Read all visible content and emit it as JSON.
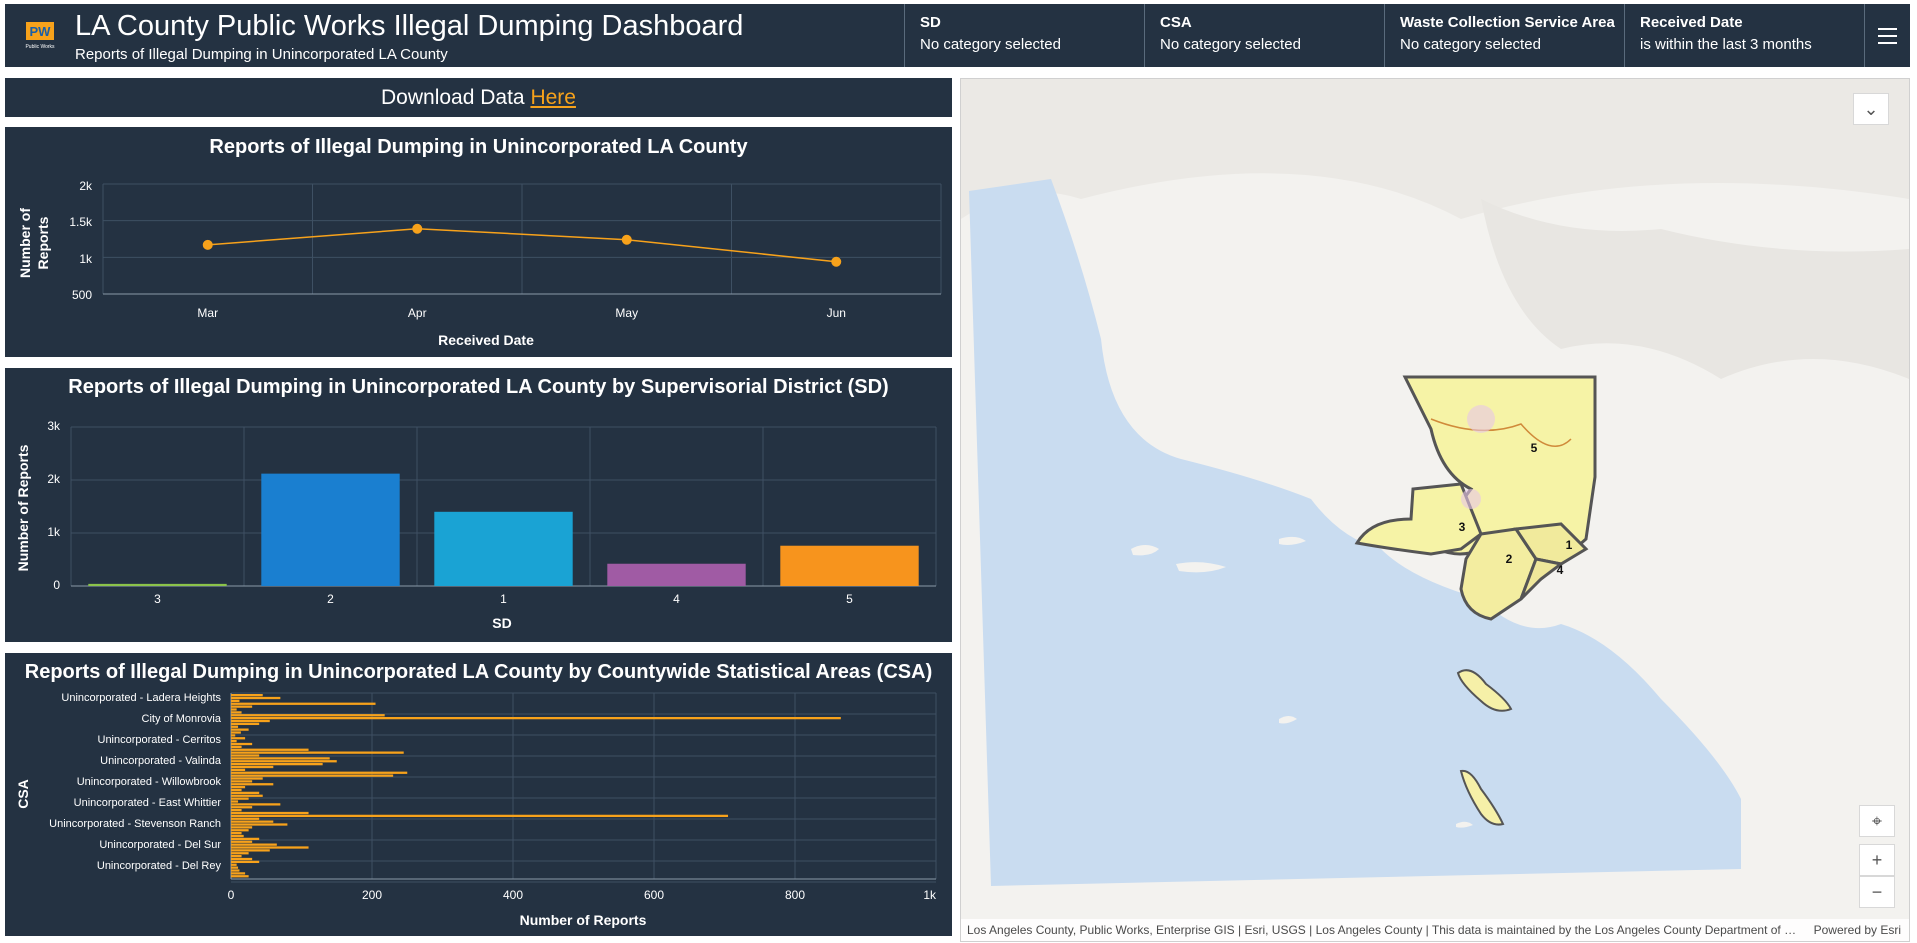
{
  "header": {
    "title": "LA County Public Works Illegal Dumping Dashboard",
    "subtitle": "Reports of Illegal Dumping in Unincorporated LA County",
    "logo_text": "PW",
    "logo_subtext": "Public Works"
  },
  "filters": [
    {
      "title": "SD",
      "value": "No category selected"
    },
    {
      "title": "CSA",
      "value": "No category selected"
    },
    {
      "title": "Waste Collection Service Area",
      "value": "No category selected"
    },
    {
      "title": "Received Date",
      "value": "is within the last 3 months"
    }
  ],
  "download": {
    "text": "Download Data ",
    "link": "Here"
  },
  "charts": {
    "line": {
      "title": "Reports of Illegal Dumping in Unincorporated LA County",
      "ylabel_1": "Number of",
      "ylabel_2": "Reports",
      "xlabel": "Received Date",
      "yticks": [
        "2k",
        "1.5k",
        "1k",
        "500"
      ]
    },
    "bar": {
      "title": "Reports of Illegal Dumping in Unincorporated LA County by Supervisorial District (SD)",
      "ylabel": "Number of Reports",
      "xlabel": "SD",
      "yticks": [
        "3k",
        "2k",
        "1k",
        "0"
      ]
    },
    "hbar": {
      "title": "Reports of Illegal Dumping in Unincorporated LA County by Countywide Statistical Areas (CSA)",
      "ylabel": "CSA",
      "xlabel": "Number of Reports",
      "xticks": [
        "0",
        "200",
        "400",
        "600",
        "800",
        "1k"
      ],
      "category_labels": [
        "Unincorporated - Ladera Heights",
        "City of Monrovia",
        "Unincorporated - Cerritos",
        "Unincorporated - Valinda",
        "Unincorporated - Willowbrook",
        "Unincorporated - East Whittier",
        "Unincorporated - Stevenson Ranch",
        "Unincorporated - Del Sur",
        "Unincorporated - Del Rey"
      ]
    }
  },
  "chart_data": [
    {
      "type": "line",
      "title": "Reports of Illegal Dumping in Unincorporated LA County",
      "xlabel": "Received Date",
      "ylabel": "Number of Reports",
      "categories": [
        "Mar",
        "Apr",
        "May",
        "Jun"
      ],
      "values": [
        1170,
        1390,
        1240,
        940
      ],
      "ylim": [
        500,
        2000
      ],
      "grid": true,
      "color": "#f7a21b"
    },
    {
      "type": "bar",
      "title": "Reports of Illegal Dumping in Unincorporated LA County by Supervisorial District (SD)",
      "xlabel": "SD",
      "ylabel": "Number of Reports",
      "categories": [
        "3",
        "2",
        "1",
        "4",
        "5"
      ],
      "values": [
        40,
        2120,
        1400,
        420,
        760
      ],
      "colors": [
        "#8bc34a",
        "#1a7fd0",
        "#1aa3d4",
        "#a05ba4",
        "#f7941d"
      ],
      "ylim": [
        0,
        3000
      ],
      "grid": true
    },
    {
      "type": "bar",
      "orientation": "horizontal",
      "title": "Reports of Illegal Dumping in Unincorporated LA County by Countywide Statistical Areas (CSA)",
      "xlabel": "Number of Reports",
      "ylabel": "CSA",
      "xlim": [
        0,
        1000
      ],
      "labeled_categories": [
        "Unincorporated - Ladera Heights",
        "City of Monrovia",
        "Unincorporated - Cerritos",
        "Unincorporated - Valinda",
        "Unincorporated - Willowbrook",
        "Unincorporated - East Whittier",
        "Unincorporated - Stevenson Ranch",
        "Unincorporated - Del Sur",
        "Unincorporated - Del Rey"
      ],
      "values": [
        45,
        70,
        12,
        205,
        30,
        8,
        15,
        218,
        865,
        55,
        40,
        10,
        25,
        14,
        6,
        20,
        8,
        30,
        15,
        110,
        245,
        40,
        140,
        150,
        130,
        60,
        20,
        250,
        230,
        45,
        30,
        60,
        20,
        15,
        40,
        45,
        25,
        10,
        70,
        30,
        15,
        110,
        705,
        40,
        60,
        80,
        30,
        25,
        15,
        18,
        40,
        30,
        65,
        110,
        55,
        25,
        15,
        30,
        40,
        8,
        10,
        12,
        20,
        25
      ],
      "color": "#f7a21b",
      "grid": true
    }
  ],
  "map": {
    "district_labels": [
      "5",
      "3",
      "2",
      "1",
      "4"
    ],
    "attribution": "Los Angeles County, Public Works, Enterprise GIS | Esri, USGS | Los Angeles County | This data is maintained by the Los Angeles County Department of R...",
    "powered_by": "Powered by Esri",
    "buttons": {
      "collapse": "⌄",
      "locate": "⌖",
      "zoom_in": "+",
      "zoom_out": "−"
    }
  }
}
